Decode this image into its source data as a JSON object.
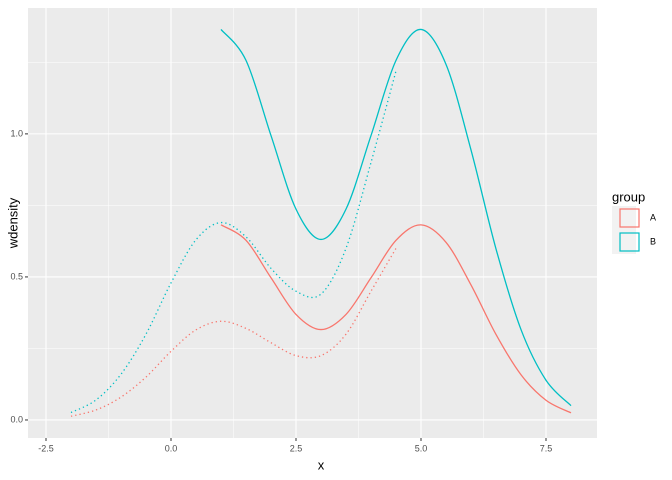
{
  "chart_data": {
    "type": "line",
    "xlabel": "x",
    "ylabel": "wdensity",
    "xlim": [
      -2.86,
      8.52
    ],
    "ylim": [
      -0.063,
      1.44
    ],
    "xticks": [
      {
        "value": -2.5,
        "label": "-2.5"
      },
      {
        "value": 0,
        "label": "0.0"
      },
      {
        "value": 2.5,
        "label": "2.5"
      },
      {
        "value": 5,
        "label": "5.0"
      },
      {
        "value": 7.5,
        "label": "7.5"
      }
    ],
    "yticks": [
      {
        "value": 0,
        "label": "0.0"
      },
      {
        "value": 0.5,
        "label": "0.5"
      },
      {
        "value": 1,
        "label": "1.0"
      }
    ],
    "grid": true,
    "legend_title": "group",
    "legend_position": "right",
    "series": [
      {
        "name": "A",
        "color": "#f8766d",
        "lines": [
          {
            "linetype": "solid",
            "x": [
              1,
              1.5,
              2,
              2.5,
              3,
              3.5,
              4,
              4.5,
              5,
              5.5,
              6,
              6.5,
              7,
              7.5,
              8
            ],
            "values": [
              0.682,
              0.628,
              0.497,
              0.369,
              0.316,
              0.369,
              0.497,
              0.628,
              0.682,
              0.621,
              0.472,
              0.299,
              0.158,
              0.069,
              0.025
            ]
          },
          {
            "linetype": "dotted",
            "x": [
              -2,
              -1.5,
              -1,
              -0.5,
              0,
              0.5,
              1,
              1.5,
              2,
              2.5,
              3,
              3.5,
              4,
              4.5
            ],
            "values": [
              0.013,
              0.035,
              0.08,
              0.15,
              0.24,
              0.315,
              0.345,
              0.32,
              0.27,
              0.225,
              0.225,
              0.3,
              0.45,
              0.6
            ]
          }
        ]
      },
      {
        "name": "B",
        "color": "#00bfc4",
        "lines": [
          {
            "linetype": "solid",
            "x": [
              1,
              1.5,
              2,
              2.5,
              3,
              3.5,
              4,
              4.5,
              5,
              5.5,
              6,
              6.5,
              7,
              7.5,
              8
            ],
            "values": [
              1.365,
              1.257,
              0.994,
              0.737,
              0.631,
              0.737,
              0.994,
              1.257,
              1.365,
              1.243,
              0.944,
              0.598,
              0.316,
              0.139,
              0.05
            ]
          },
          {
            "linetype": "dotted",
            "x": [
              -2,
              -1.5,
              -1,
              -0.5,
              0,
              0.5,
              1,
              1.5,
              2,
              2.5,
              3,
              3.5,
              4,
              4.5
            ],
            "values": [
              0.026,
              0.07,
              0.16,
              0.3,
              0.479,
              0.63,
              0.69,
              0.64,
              0.53,
              0.45,
              0.44,
              0.6,
              0.9,
              1.22
            ]
          }
        ]
      }
    ]
  }
}
